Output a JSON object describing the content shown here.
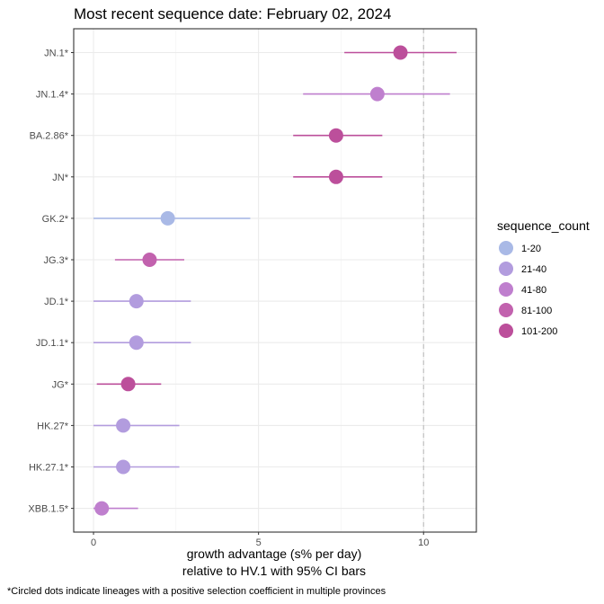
{
  "chart_data": {
    "type": "scatter",
    "title": "Most recent sequence date: February 02, 2024",
    "xlabel_line1": "growth advantage (s% per day)",
    "xlabel_line2": "relative to  HV.1  with 95% CI bars",
    "caption": "*Circled dots indicate lineages with a positive selection coefficient in multiple provinces",
    "xlim": [
      -0.6,
      11.6
    ],
    "xticks": [
      0,
      5,
      10
    ],
    "xtick_labels": [
      "0",
      "5",
      "10"
    ],
    "reference_line_x": 10,
    "grid": true,
    "legend_position": "right",
    "legend_title": "sequence_count",
    "legend": [
      {
        "label": "1-20",
        "color": "#a9b9e6"
      },
      {
        "label": "21-40",
        "color": "#b29cde"
      },
      {
        "label": "41-80",
        "color": "#bf7fce"
      },
      {
        "label": "81-100",
        "color": "#c262ae"
      },
      {
        "label": "101-200",
        "color": "#bc4f9b"
      }
    ],
    "points": [
      {
        "lineage": "JN.1*",
        "estimate": 9.3,
        "lower": 7.6,
        "upper": 11.0,
        "count_group": "101-200"
      },
      {
        "lineage": "JN.1.4*",
        "estimate": 8.6,
        "lower": 6.35,
        "upper": 10.8,
        "count_group": "41-80"
      },
      {
        "lineage": "BA.2.86*",
        "estimate": 7.35,
        "lower": 6.05,
        "upper": 8.75,
        "count_group": "101-200"
      },
      {
        "lineage": "JN*",
        "estimate": 7.35,
        "lower": 6.05,
        "upper": 8.75,
        "count_group": "101-200"
      },
      {
        "lineage": "GK.2*",
        "estimate": 2.25,
        "lower": 0.0,
        "upper": 4.75,
        "count_group": "1-20"
      },
      {
        "lineage": "JG.3*",
        "estimate": 1.7,
        "lower": 0.65,
        "upper": 2.75,
        "count_group": "81-100"
      },
      {
        "lineage": "JD.1*",
        "estimate": 1.3,
        "lower": 0.0,
        "upper": 2.95,
        "count_group": "21-40"
      },
      {
        "lineage": "JD.1.1*",
        "estimate": 1.3,
        "lower": 0.0,
        "upper": 2.95,
        "count_group": "21-40"
      },
      {
        "lineage": "JG*",
        "estimate": 1.05,
        "lower": 0.1,
        "upper": 2.05,
        "count_group": "101-200"
      },
      {
        "lineage": "HK.27*",
        "estimate": 0.9,
        "lower": 0.0,
        "upper": 2.6,
        "count_group": "21-40"
      },
      {
        "lineage": "HK.27.1*",
        "estimate": 0.9,
        "lower": 0.0,
        "upper": 2.6,
        "count_group": "21-40"
      },
      {
        "lineage": "XBB.1.5*",
        "estimate": 0.25,
        "lower": 0.0,
        "upper": 1.35,
        "count_group": "41-80"
      }
    ]
  }
}
